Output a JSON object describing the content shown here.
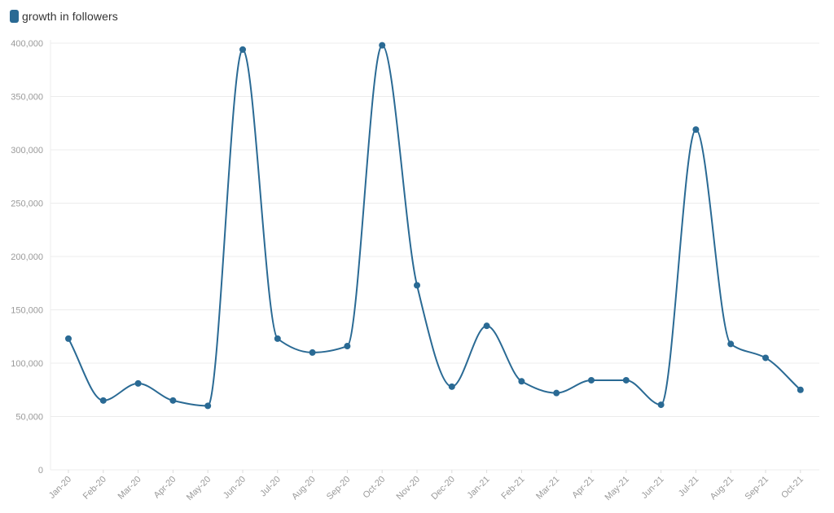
{
  "chart_data": {
    "type": "line",
    "title": "",
    "xlabel": "",
    "ylabel": "",
    "ylim": [
      0,
      400000
    ],
    "yticks": [
      0,
      50000,
      100000,
      150000,
      200000,
      250000,
      300000,
      350000,
      400000
    ],
    "ytick_labels": [
      "0",
      "50,000",
      "100,000",
      "150,000",
      "200,000",
      "250,000",
      "300,000",
      "350,000",
      "400,000"
    ],
    "grid": true,
    "legend_position": "top-left",
    "categories": [
      "Jan-20",
      "Feb-20",
      "Mar-20",
      "Apr-20",
      "May-20",
      "Jun-20",
      "Jul-20",
      "Aug-20",
      "Sep-20",
      "Oct-20",
      "Nov-20",
      "Dec-20",
      "Jan-21",
      "Feb-21",
      "Mar-21",
      "Apr-21",
      "May-21",
      "Jun-21",
      "Jul-21",
      "Aug-21",
      "Sep-21",
      "Oct-21"
    ],
    "series": [
      {
        "name": "growth in followers",
        "color": "#2a6a94",
        "values": [
          123000,
          65000,
          81000,
          65000,
          60000,
          394000,
          123000,
          110000,
          116000,
          398000,
          173000,
          78000,
          135000,
          83000,
          72000,
          84000,
          84000,
          61000,
          319000,
          118000,
          105000,
          75000
        ]
      }
    ]
  }
}
